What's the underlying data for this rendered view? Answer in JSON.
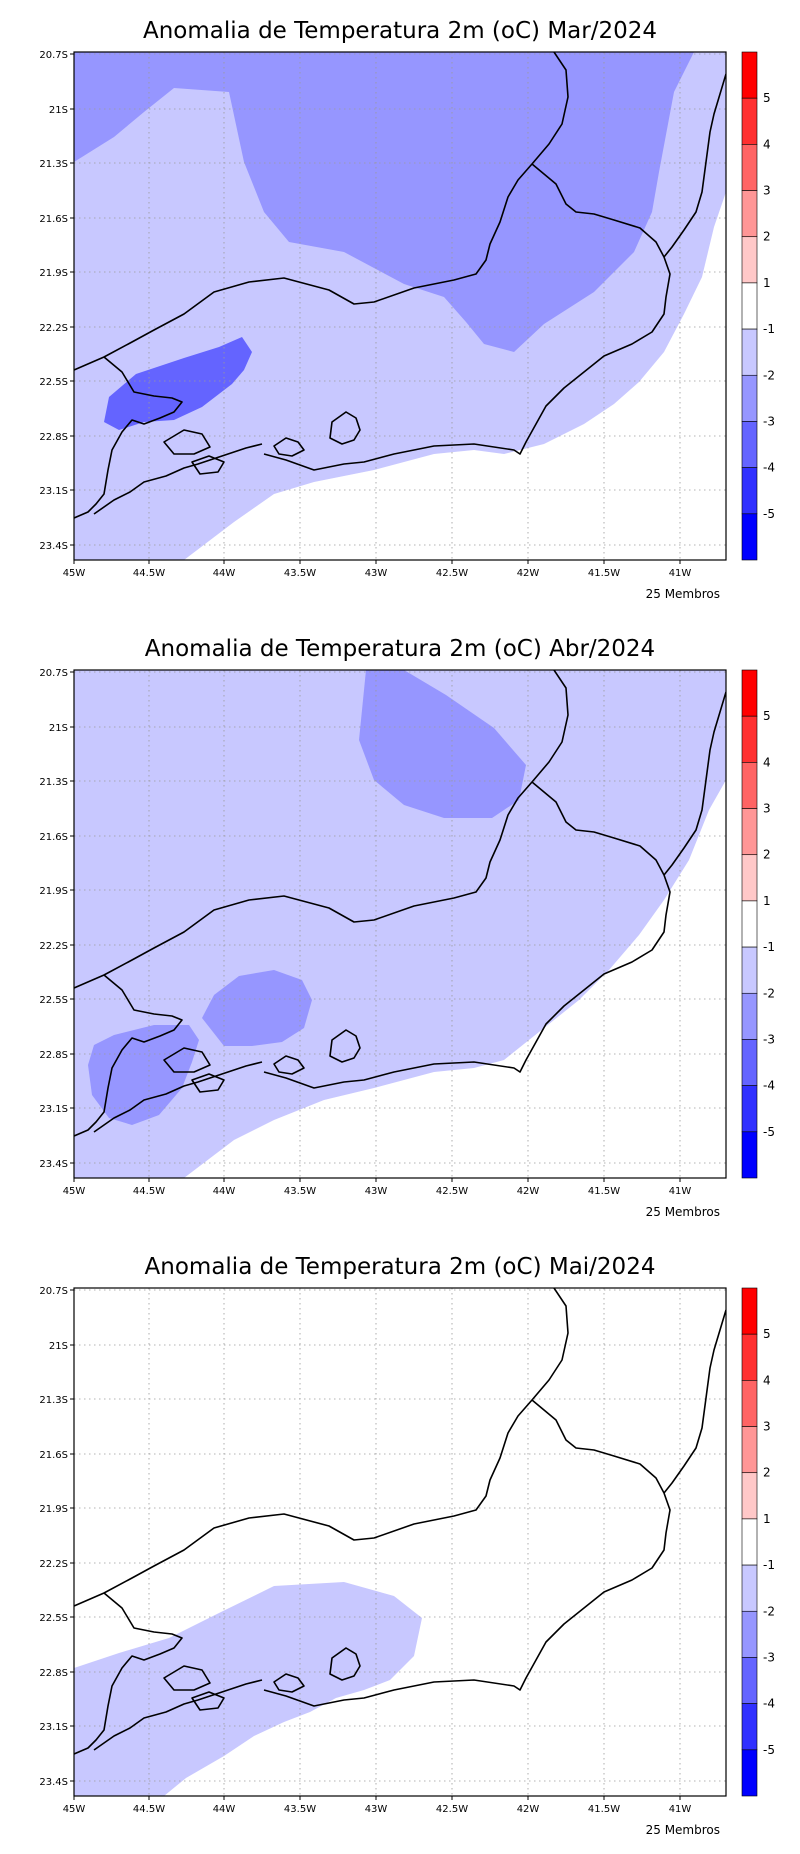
{
  "figure": {
    "lon_ticks": [
      "45W",
      "44.5W",
      "44W",
      "43.5W",
      "43W",
      "42.5W",
      "42W",
      "41.5W",
      "41W"
    ],
    "lat_ticks": [
      "20.7S",
      "21S",
      "21.3S",
      "21.6S",
      "21.9S",
      "22.2S",
      "22.5S",
      "22.8S",
      "23.1S",
      "23.4S"
    ],
    "colorbar": {
      "labels": [
        "5",
        "4",
        "3",
        "2",
        "1",
        "-1",
        "-2",
        "-3",
        "-4",
        "-5"
      ],
      "colors": [
        "#ff0000",
        "#ff3030",
        "#ff6464",
        "#ff9696",
        "#ffc8c8",
        "#ffffff",
        "#c8c8ff",
        "#9696ff",
        "#6464ff",
        "#3030ff",
        "#0000ff"
      ]
    },
    "footer": "25 Membros"
  },
  "chart_data": [
    {
      "type": "heatmap",
      "title": "Anomalia de Temperatura 2m (oC) Mar/2024",
      "variable": "2 m temperature anomaly (oC)",
      "x_range": [
        "45W",
        "40.7W"
      ],
      "y_range": [
        "20.7S",
        "23.5S"
      ],
      "levels": [
        -5,
        -4,
        -3,
        -2,
        -1,
        1,
        2,
        3,
        4,
        5
      ],
      "regions": [
        {
          "range": "-1 to -2",
          "area": "most of domain"
        },
        {
          "range": "-2 to -3",
          "area": "north band and central-east lobe"
        },
        {
          "range": "-3 to -4",
          "area": "near 44.5W 22.7S"
        },
        {
          "range": "-1 to 1",
          "area": "southern coastal margin"
        }
      ],
      "footer": "25 Membros"
    },
    {
      "type": "heatmap",
      "title": "Anomalia de Temperatura 2m (oC) Abr/2024",
      "variable": "2 m temperature anomaly (oC)",
      "x_range": [
        "45W",
        "40.7W"
      ],
      "y_range": [
        "20.7S",
        "23.5S"
      ],
      "levels": [
        -5,
        -4,
        -3,
        -2,
        -1,
        1,
        2,
        3,
        4,
        5
      ],
      "regions": [
        {
          "range": "-1 to -2",
          "area": "most of domain"
        },
        {
          "range": "-2 to -3",
          "area": "near 42.5W 21.2S, 44W 22.6S, 44.7W 22.9S"
        },
        {
          "range": "-1 to 1",
          "area": "southern coastal margin and east"
        }
      ],
      "footer": "25 Membros"
    },
    {
      "type": "heatmap",
      "title": "Anomalia de Temperatura 2m (oC) Mai/2024",
      "variable": "2 m temperature anomaly (oC)",
      "x_range": [
        "45W",
        "40.7W"
      ],
      "y_range": [
        "20.7S",
        "23.5S"
      ],
      "levels": [
        -5,
        -4,
        -3,
        -2,
        -1,
        1,
        2,
        3,
        4,
        5
      ],
      "regions": [
        {
          "range": "-1 to 1",
          "area": "most of domain"
        },
        {
          "range": "-1 to -2",
          "area": "southwest, 45W-42.8W 22.4S-23.5S"
        }
      ],
      "footer": "25 Membros"
    }
  ]
}
